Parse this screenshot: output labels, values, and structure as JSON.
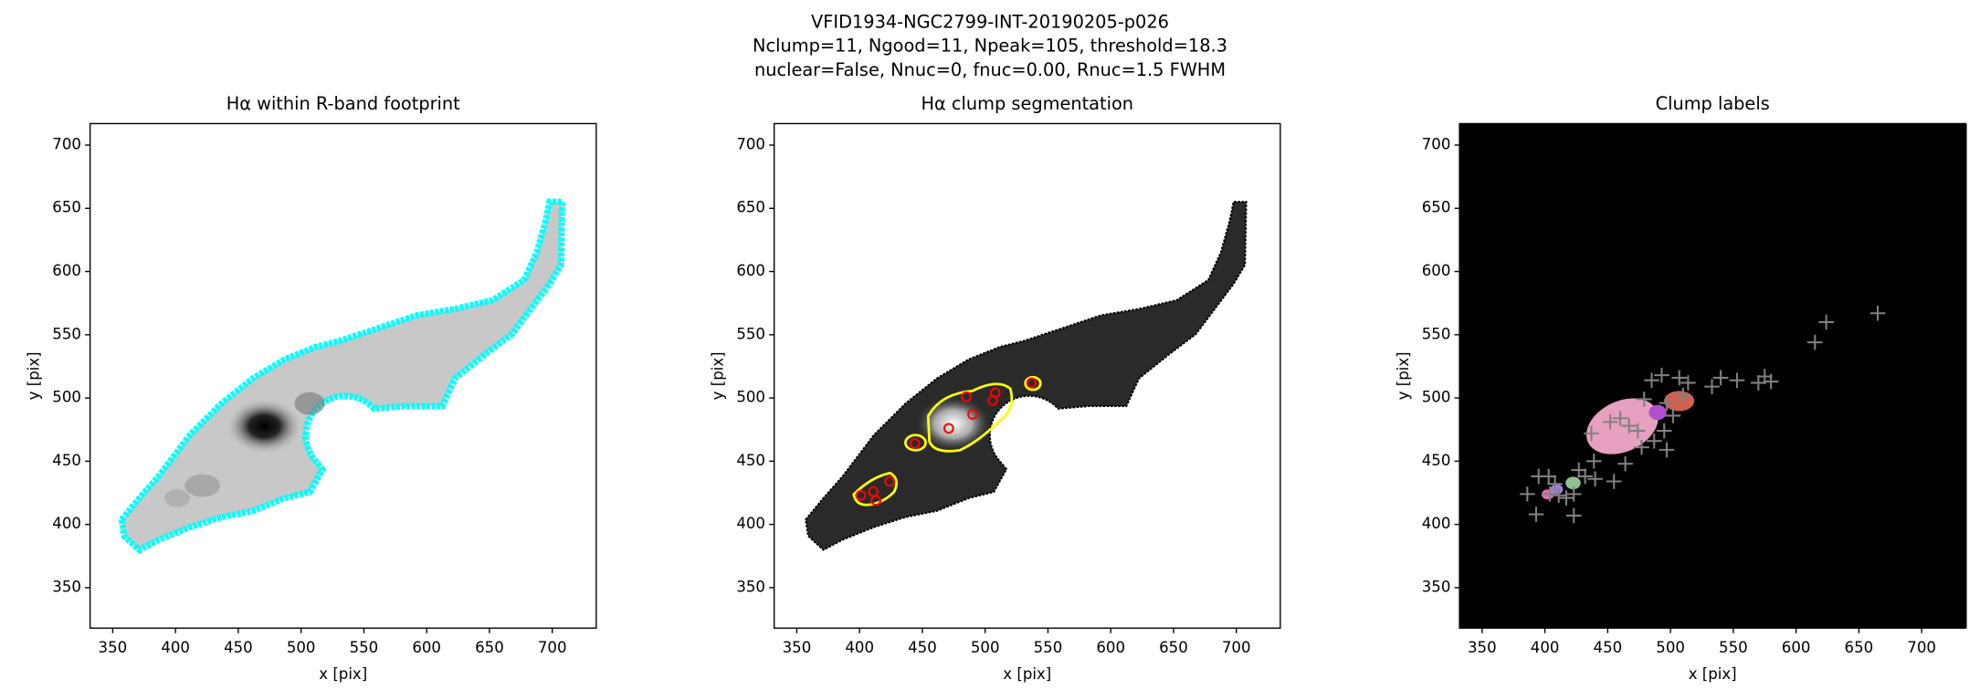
{
  "title": [
    "VFID1934-NGC2799-INT-20190205-p026",
    "Nclump=11, Ngood=11, Npeak=105, threshold=18.3",
    "nuclear=False, Nnuc=0, fnuc=0.00, Rnuc=1.5 FWHM"
  ],
  "chart_data": [
    {
      "type": "image",
      "title": "Hα within R-band footprint",
      "xlabel": "x [pix]",
      "ylabel": "y [pix]",
      "xlim": [
        332,
        735
      ],
      "ylim": [
        318,
        717
      ],
      "xticks": [
        350,
        400,
        450,
        500,
        550,
        600,
        650,
        700
      ],
      "yticks": [
        350,
        400,
        450,
        500,
        550,
        600,
        650,
        700
      ]
    },
    {
      "type": "image",
      "title": "Hα clump segmentation",
      "xlabel": "x [pix]",
      "ylabel": "y [pix]",
      "xlim": [
        332,
        735
      ],
      "ylim": [
        318,
        717
      ],
      "xticks": [
        350,
        400,
        450,
        500,
        550,
        600,
        650,
        700
      ],
      "yticks": [
        350,
        400,
        450,
        500,
        550,
        600,
        650,
        700
      ],
      "x": [
        471,
        490,
        485,
        506,
        508,
        537,
        444,
        424,
        401,
        411,
        413
      ],
      "y": [
        476,
        487,
        501,
        498,
        504,
        512,
        464,
        434,
        423,
        426,
        419
      ],
      "color": "#ff0000"
    },
    {
      "type": "scatter",
      "title": "Clump labels",
      "xlabel": "x [pix]",
      "ylabel": "y [pix]",
      "xlim": [
        332,
        735
      ],
      "ylim": [
        318,
        717
      ],
      "xticks": [
        350,
        400,
        450,
        500,
        550,
        600,
        650,
        700
      ],
      "yticks": [
        350,
        400,
        450,
        500,
        550,
        600,
        650,
        700
      ],
      "x": [
        665,
        624,
        615,
        575,
        570,
        580,
        553,
        540,
        533,
        514,
        510,
        493,
        507,
        485,
        497,
        502,
        495,
        487,
        497,
        477,
        464,
        455,
        440,
        467,
        452,
        437,
        439,
        427,
        423,
        417,
        408,
        403,
        395,
        386,
        393,
        423,
        432,
        460,
        479,
        474,
        411,
        404
      ],
      "y": [
        567,
        560,
        544,
        517,
        512,
        513,
        514,
        516,
        509,
        512,
        502,
        518,
        516,
        514,
        496,
        486,
        474,
        466,
        459,
        461,
        448,
        434,
        436,
        478,
        481,
        472,
        450,
        443,
        424,
        421,
        432,
        438,
        438,
        424,
        408,
        407,
        438,
        484,
        499,
        474,
        423,
        424
      ],
      "color": "#808080"
    }
  ]
}
